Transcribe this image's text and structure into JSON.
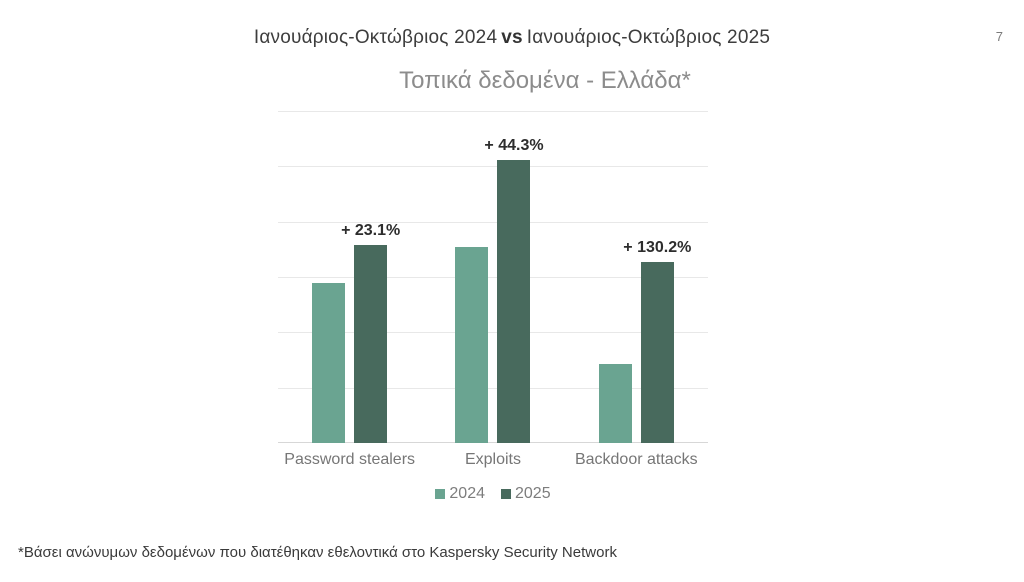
{
  "page": {
    "background": "#ffffff",
    "page_number": "7"
  },
  "header": {
    "title_part1": "Ιανουάριος-Οκτώβριος 2024",
    "title_vs": "vs",
    "title_part2": "Ιανουάριος-Οκτώβριος 2025",
    "subtitle": "Τοπικά δεδομένα - Ελλάδα*"
  },
  "footnote": "*Βάσει ανώνυμων δεδομένων που διατέθηκαν εθελοντικά στο Kaspersky Security Network",
  "chart_data": {
    "type": "bar",
    "title": "Τοπικά δεδομένα - Ελλάδα*",
    "categories": [
      "Password stealers",
      "Exploits",
      "Backdoor attacks"
    ],
    "series": [
      {
        "name": "2024",
        "color": "#6AA491",
        "values": [
          2.9,
          3.55,
          1.42
        ]
      },
      {
        "name": "2025",
        "color": "#486A5D",
        "values": [
          3.57,
          5.12,
          3.27
        ]
      }
    ],
    "change_labels": [
      "+ 23.1%",
      "+ 44.3%",
      "+ 130.2%"
    ],
    "ylim": [
      0,
      6
    ],
    "gridline_count": 6,
    "grid_on": true,
    "y_axis_labels_shown": false,
    "legend_position": "bottom",
    "value_note": "relative units estimated from unlabeled gridlines; chart shows no y-axis scale"
  },
  "colors": {
    "series_2024": "#6AA491",
    "series_2025": "#486A5D",
    "gridline": "#e8e8e8",
    "axis_line": "#d7d7d7",
    "title_text": "#3d3d3d",
    "subtitle_text": "#8c8c8c",
    "category_text": "#767676",
    "legend_text": "#7d7d7d",
    "change_label_text": "#2d2d2d",
    "footnote_text": "#3a3a3a",
    "page_number_text": "#7a7a7a"
  }
}
